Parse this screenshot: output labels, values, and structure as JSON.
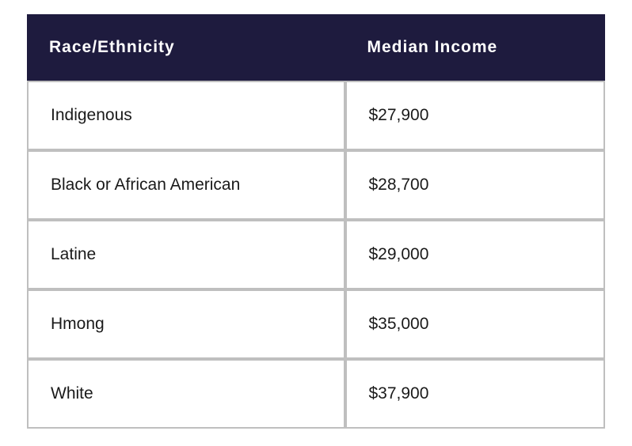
{
  "table": {
    "type": "table",
    "header_bg": "#1e1b3e",
    "header_text_color": "#ffffff",
    "body_bg": "#ffffff",
    "body_text_color": "#1a1a1a",
    "border_color": "#bfbfbf",
    "border_width": 2,
    "header_fontsize": 21,
    "body_fontsize": 21,
    "header_font_weight": "bold",
    "header_letter_spacing": 1,
    "cell_padding_v": 30,
    "cell_padding_h": 28,
    "column_widths_pct": [
      55,
      45
    ],
    "columns": [
      "Race/Ethnicity",
      "Median Income"
    ],
    "rows": [
      [
        "Indigenous",
        "$27,900"
      ],
      [
        "Black or African American",
        "$28,700"
      ],
      [
        "Latine",
        "$29,000"
      ],
      [
        "Hmong",
        "$35,000"
      ],
      [
        "White",
        "$37,900"
      ]
    ]
  }
}
